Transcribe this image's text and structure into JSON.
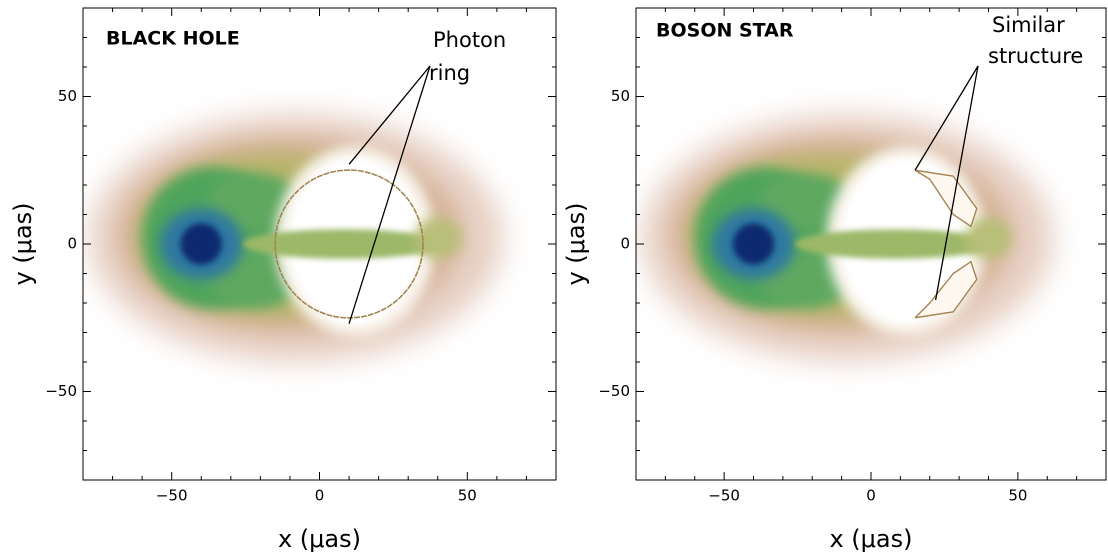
{
  "chart_data": [
    {
      "type": "image",
      "title": "BLACK HOLE",
      "xlabel": "x (μas)",
      "ylabel": "y (μas)",
      "xlim": [
        -80,
        80
      ],
      "ylim": [
        -80,
        80
      ],
      "xticks": [
        {
          "value": -50,
          "label": "−50"
        },
        0,
        50
      ],
      "yticks": [
        {
          "value": -50,
          "label": "−50"
        },
        0,
        50
      ],
      "minor_ticks": [
        -70,
        -60,
        -40,
        -30,
        -20,
        -10,
        10,
        20,
        30,
        40,
        60,
        70
      ],
      "annotation": {
        "lines": [
          "Photon",
          "ring"
        ],
        "points": [
          [
            10,
            27
          ],
          [
            10,
            -27
          ]
        ]
      }
    },
    {
      "type": "image",
      "title": "BOSON STAR",
      "xlabel": "x (μas)",
      "ylabel": "y (μas)",
      "xlim": [
        -80,
        80
      ],
      "ylim": [
        -80,
        80
      ],
      "xticks": [
        {
          "value": -50,
          "label": "−50"
        },
        0,
        50
      ],
      "yticks": [
        {
          "value": -50,
          "label": "−50"
        },
        0,
        50
      ],
      "minor_ticks": [
        -70,
        -60,
        -40,
        -30,
        -20,
        -10,
        10,
        20,
        30,
        40,
        60,
        70
      ],
      "annotation": {
        "lines": [
          "Similar",
          "structure"
        ],
        "points": [
          [
            15,
            25
          ],
          [
            22,
            -19
          ]
        ]
      }
    }
  ]
}
